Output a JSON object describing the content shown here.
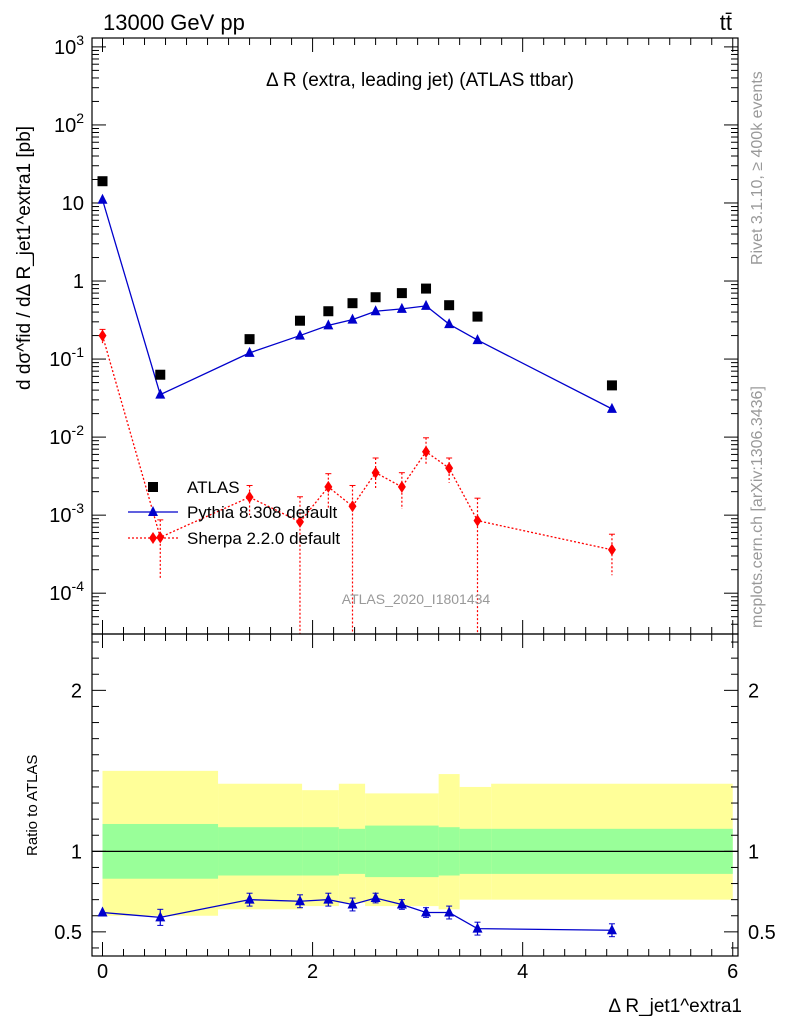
{
  "header": {
    "left": "13000 GeV pp",
    "right": "tt̄"
  },
  "side_labels": {
    "rivet": "Rivet 3.1.10, ≥ 400k events",
    "mcplots": "mcplots.cern.ch [arXiv:1306.3436]"
  },
  "watermark": "ATLAS_2020_I1801434",
  "chart_data": [
    {
      "type": "scatter",
      "title": "Δ R (extra, leading jet) (ATLAS ttbar)",
      "ylabel": "d dσ^fid / dΔ R_jet1^extra1 [pb]",
      "yscale": "log",
      "ylim": [
        3e-05,
        1300
      ],
      "xlim": [
        -0.1,
        6.05
      ],
      "y_ticks": [
        "10^-4",
        "10^-3",
        "10^-2",
        "10^-1",
        "1",
        "10",
        "10^2",
        "10^3"
      ],
      "legend_position": "middle-left",
      "series": [
        {
          "name": "ATLAS",
          "color": "#000000",
          "marker": "square",
          "x": [
            0.0,
            0.55,
            1.4,
            1.88,
            2.15,
            2.38,
            2.6,
            2.85,
            3.08,
            3.3,
            3.57,
            4.85
          ],
          "y": [
            19,
            0.063,
            0.18,
            0.31,
            0.41,
            0.52,
            0.62,
            0.7,
            0.8,
            0.49,
            0.35,
            0.046
          ]
        },
        {
          "name": "Pythia 8.308 default",
          "color": "#0000cc",
          "marker": "triangle",
          "line": "solid",
          "x": [
            0.0,
            0.55,
            1.4,
            1.88,
            2.15,
            2.38,
            2.6,
            2.85,
            3.08,
            3.3,
            3.57,
            4.85
          ],
          "y": [
            11,
            0.035,
            0.12,
            0.2,
            0.27,
            0.32,
            0.41,
            0.44,
            0.48,
            0.28,
            0.175,
            0.023
          ]
        },
        {
          "name": "Sherpa 2.2.0 default",
          "color": "#ff0000",
          "marker": "diamond",
          "line": "dotted",
          "x": [
            0.0,
            0.55,
            1.4,
            1.88,
            2.15,
            2.38,
            2.6,
            2.85,
            3.08,
            3.3,
            3.57,
            4.85
          ],
          "y": [
            0.2,
            0.00052,
            0.0017,
            0.00082,
            0.0023,
            0.0013,
            0.0035,
            0.0023,
            0.0065,
            0.004,
            0.00085,
            0.00036
          ],
          "y_err_low": [
            0.04,
            0.00037,
            0.0007,
            0.00082,
            0.0011,
            0.0013,
            0.0014,
            0.0011,
            0.0021,
            0.0014,
            0.00085,
            0.00019
          ],
          "y_err_high": [
            0.04,
            0.00035,
            0.0007,
            0.0009,
            0.0011,
            0.0011,
            0.0019,
            0.0012,
            0.0033,
            0.0014,
            0.0008,
            0.00021
          ]
        }
      ]
    },
    {
      "type": "scatter",
      "ylabel": "Ratio to ATLAS",
      "xlabel": "Δ R_jet1^extra1",
      "ylim": [
        0.35,
        2.35
      ],
      "xlim": [
        -0.1,
        6.05
      ],
      "x_ticks": [
        "0",
        "2",
        "4",
        "6"
      ],
      "y_ticks": [
        "0.5",
        "1",
        "2"
      ],
      "bands": {
        "bin_edges": [
          0.0,
          1.1,
          1.9,
          2.25,
          2.5,
          3.2,
          3.4,
          3.7,
          6.0
        ],
        "green_low": [
          0.83,
          0.85,
          0.85,
          0.86,
          0.84,
          0.85,
          0.86,
          0.86
        ],
        "green_high": [
          1.17,
          1.15,
          1.15,
          1.14,
          1.16,
          1.15,
          1.14,
          1.14
        ],
        "yellow_low": [
          0.6,
          0.64,
          0.66,
          0.68,
          0.66,
          0.64,
          0.7,
          0.7
        ],
        "yellow_high": [
          1.5,
          1.42,
          1.38,
          1.42,
          1.36,
          1.48,
          1.4,
          1.42
        ],
        "green_color": "#99ff99",
        "yellow_color": "#ffff99"
      },
      "series": [
        {
          "name": "Pythia 8.308 default",
          "color": "#0000cc",
          "marker": "triangle",
          "x": [
            0.0,
            0.55,
            1.4,
            1.88,
            2.15,
            2.38,
            2.6,
            2.85,
            3.08,
            3.3,
            3.57,
            4.85
          ],
          "y": [
            0.62,
            0.59,
            0.7,
            0.69,
            0.7,
            0.67,
            0.71,
            0.67,
            0.62,
            0.62,
            0.52,
            0.51
          ],
          "y_err": [
            0.0,
            0.05,
            0.04,
            0.04,
            0.04,
            0.04,
            0.03,
            0.03,
            0.03,
            0.04,
            0.04,
            0.04
          ]
        }
      ]
    }
  ]
}
